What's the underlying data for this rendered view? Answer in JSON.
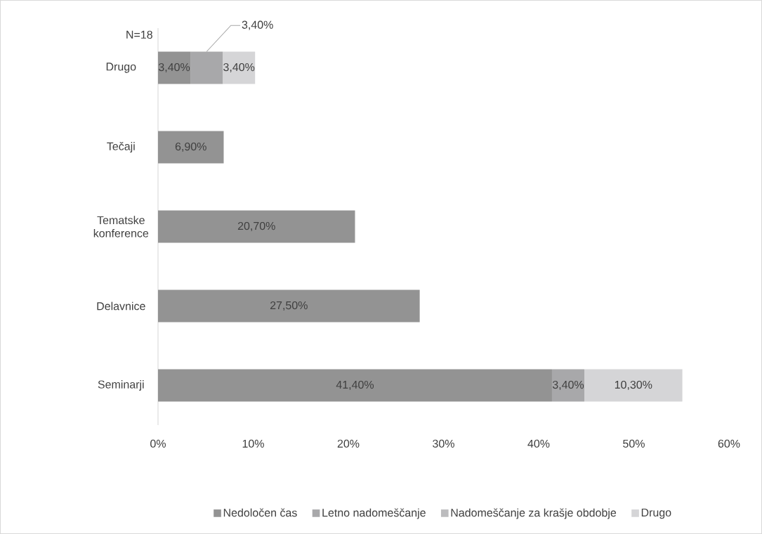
{
  "chart_data": {
    "type": "bar",
    "orientation": "horizontal",
    "stacked": true,
    "categories": [
      "Drugo",
      "Tečaji",
      "Tematske konference",
      "Delavnice",
      "Seminarji"
    ],
    "series": [
      {
        "name": "Nedoločen čas",
        "color": "#939393",
        "values": [
          3.4,
          6.9,
          20.7,
          27.5,
          41.4
        ],
        "value_labels": [
          "3,40%",
          "6,90%",
          "20,70%",
          "27,50%",
          "41,40%"
        ]
      },
      {
        "name": "Letno nadomeščanje",
        "color": "#a8a8aa",
        "values": [
          3.4,
          null,
          null,
          null,
          3.4
        ],
        "value_labels": [
          "3,40%",
          null,
          null,
          null,
          "3,40%"
        ]
      },
      {
        "name": "Nadomeščanje za krašje obdobje",
        "color": "#bcbcbe",
        "values": [
          null,
          null,
          null,
          null,
          null
        ]
      },
      {
        "name": "Drugo",
        "color": "#d5d5d7",
        "values": [
          3.4,
          null,
          null,
          null,
          10.3
        ],
        "value_labels": [
          "3,40%",
          null,
          null,
          null,
          "10,30%"
        ]
      }
    ],
    "xlim": [
      0,
      60
    ],
    "xticks": [
      {
        "value": 0,
        "label": "0%"
      },
      {
        "value": 10,
        "label": "10%"
      },
      {
        "value": 20,
        "label": "20%"
      },
      {
        "value": 30,
        "label": "30%"
      },
      {
        "value": 40,
        "label": "40%"
      },
      {
        "value": 50,
        "label": "50%"
      },
      {
        "value": 60,
        "label": "60%"
      }
    ],
    "annotations": [
      "N=18"
    ],
    "grid": false,
    "legend": "bottom"
  }
}
